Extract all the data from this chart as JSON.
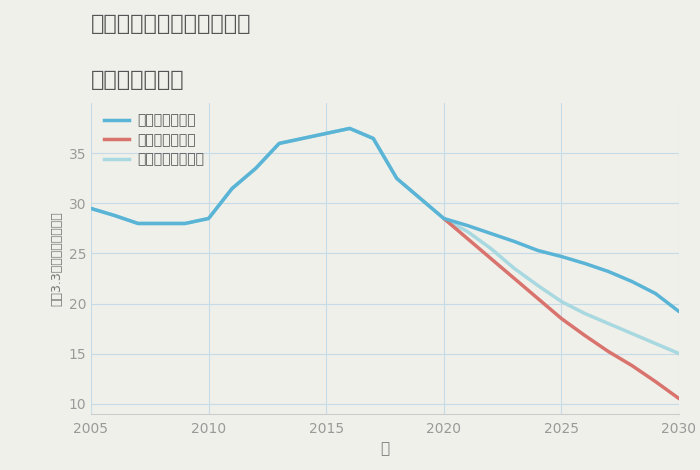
{
  "title_line1": "愛知県江南市山尻町朝日の",
  "title_line2": "土地の価格推移",
  "xlabel": "年",
  "ylabel": "坪（3.3㎡）単価（万円）",
  "background_color": "#f0f0eb",
  "plot_bg_color": "#f0f0eb",
  "xlim": [
    2005,
    2030
  ],
  "ylim": [
    9,
    40
  ],
  "yticks": [
    10,
    15,
    20,
    25,
    30,
    35
  ],
  "xticks": [
    2005,
    2010,
    2015,
    2020,
    2025,
    2030
  ],
  "good_color": "#5ab4d6",
  "bad_color": "#d9736e",
  "normal_color": "#a8d8e0",
  "good_label": "グッドシナリオ",
  "bad_label": "バッドシナリオ",
  "normal_label": "ノーマルシナリオ",
  "good_years": [
    2005,
    2006,
    2007,
    2008,
    2009,
    2010,
    2011,
    2012,
    2013,
    2014,
    2015,
    2016,
    2017,
    2018,
    2019,
    2020,
    2021,
    2022,
    2023,
    2024,
    2025,
    2026,
    2027,
    2028,
    2029,
    2030
  ],
  "good_values": [
    29.5,
    28.8,
    28.0,
    28.0,
    28.0,
    28.5,
    31.5,
    33.5,
    36.0,
    36.5,
    37.0,
    37.5,
    36.5,
    32.5,
    30.5,
    28.5,
    27.8,
    27.0,
    26.2,
    25.3,
    24.7,
    24.0,
    23.2,
    22.2,
    21.0,
    19.2
  ],
  "bad_years": [
    2020,
    2021,
    2022,
    2023,
    2024,
    2025,
    2026,
    2027,
    2028,
    2029,
    2030
  ],
  "bad_values": [
    28.5,
    26.5,
    24.5,
    22.5,
    20.5,
    18.5,
    16.8,
    15.2,
    13.8,
    12.2,
    10.5
  ],
  "normal_years": [
    2005,
    2006,
    2007,
    2008,
    2009,
    2010,
    2011,
    2012,
    2013,
    2014,
    2015,
    2016,
    2017,
    2018,
    2019,
    2020,
    2021,
    2022,
    2023,
    2024,
    2025,
    2026,
    2027,
    2028,
    2029,
    2030
  ],
  "normal_values": [
    29.5,
    28.8,
    28.0,
    28.0,
    28.0,
    28.5,
    31.5,
    33.5,
    36.0,
    36.5,
    37.0,
    37.5,
    36.5,
    32.5,
    30.5,
    28.5,
    27.2,
    25.5,
    23.5,
    21.8,
    20.2,
    19.0,
    18.0,
    17.0,
    16.0,
    15.0
  ]
}
